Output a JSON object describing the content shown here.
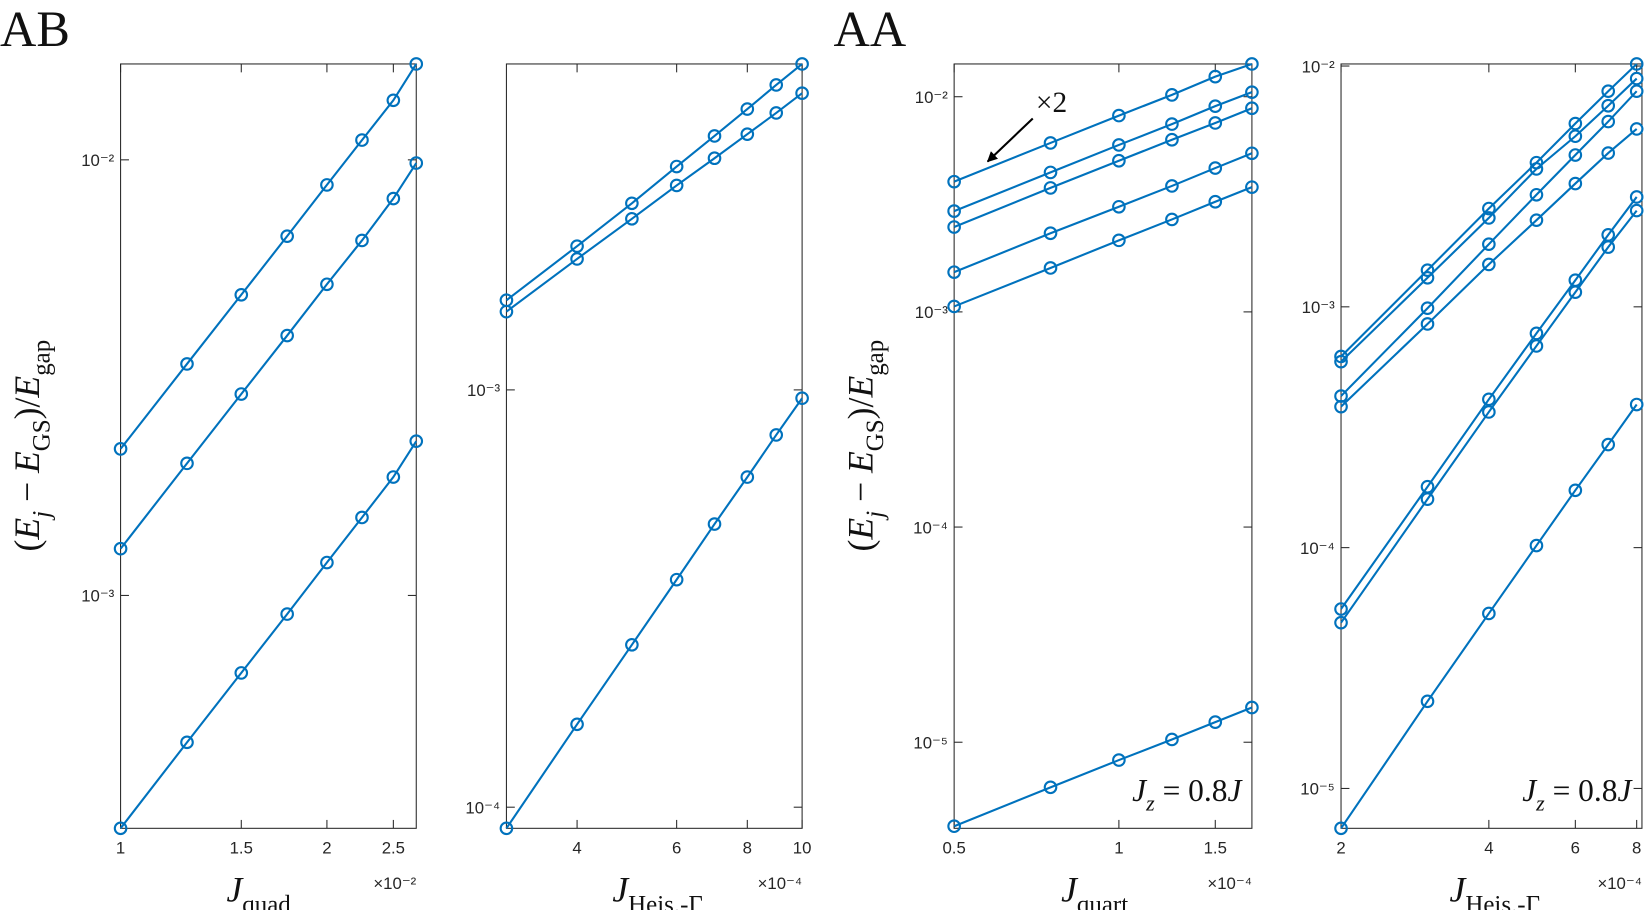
{
  "chart_data": [
    {
      "type": "line",
      "panel_label": "AB",
      "xscale": "log",
      "yscale": "log",
      "xlabel": [
        "J",
        "quad"
      ],
      "x_multiplier": "×10⁻²",
      "ylabel": [
        "(",
        "E",
        "j",
        " − ",
        "E",
        "GS",
        ")/",
        "E",
        "gap"
      ],
      "x": [
        1,
        1.25,
        1.5,
        1.75,
        2,
        2.25,
        2.5,
        2.7
      ],
      "xlim": [
        1,
        2.7
      ],
      "xticks": [
        1,
        1.5,
        2,
        2.5
      ],
      "ylim": [
        0.000292,
        0.0166
      ],
      "yticks": [
        {
          "value": 0.001,
          "label": "10⁻³"
        },
        {
          "value": 0.01,
          "label": "10⁻²"
        }
      ],
      "series": [
        {
          "color": "#0072bd",
          "values": [
            0.00217,
            0.0034,
            0.0049,
            0.00668,
            0.00876,
            0.0111,
            0.0137,
            0.0166
          ]
        },
        {
          "color": "#0072bd",
          "values": [
            0.00128,
            0.00201,
            0.0029,
            0.00395,
            0.00518,
            0.00653,
            0.00815,
            0.00983
          ]
        },
        {
          "color": "#0072bd",
          "values": [
            0.000292,
            0.00046,
            0.000664,
            0.000906,
            0.00119,
            0.00151,
            0.00187,
            0.00226
          ]
        }
      ]
    },
    {
      "type": "line",
      "xscale": "log",
      "yscale": "log",
      "xlabel": [
        "J",
        "Heis.-Γ"
      ],
      "x_multiplier": "×10⁻⁴",
      "x": [
        3,
        4,
        5,
        6,
        7,
        8,
        9,
        10
      ],
      "xlim": [
        3,
        10
      ],
      "xticks": [
        4,
        6,
        8,
        10
      ],
      "ylim": [
        8.9e-05,
        0.00604
      ],
      "yticks": [
        {
          "value": 0.0001,
          "label": "10⁻⁴"
        },
        {
          "value": 0.001,
          "label": "10⁻³"
        }
      ],
      "series": [
        {
          "color": "#0072bd",
          "values": [
            0.00164,
            0.00221,
            0.0028,
            0.00343,
            0.00406,
            0.00471,
            0.00538,
            0.00604
          ]
        },
        {
          "color": "#0072bd",
          "values": [
            0.00154,
            0.00206,
            0.00257,
            0.00309,
            0.00359,
            0.0041,
            0.00461,
            0.00514
          ]
        },
        {
          "color": "#0072bd",
          "values": [
            8.9e-05,
            0.000158,
            0.000245,
            0.000351,
            0.000477,
            0.000618,
            0.00078,
            0.000955
          ]
        }
      ]
    },
    {
      "type": "line",
      "panel_label": "AA",
      "xscale": "log",
      "yscale": "log",
      "xlabel": [
        "J",
        "quart"
      ],
      "x_multiplier": "×10⁻⁴",
      "ylabel": [
        "(",
        "E",
        "j",
        " − ",
        "E",
        "GS",
        ")/",
        "E",
        "gap"
      ],
      "arrow_label": "×2",
      "note": [
        "J",
        "z",
        " = 0.8",
        "J"
      ],
      "x": [
        0.5,
        0.75,
        1,
        1.25,
        1.5,
        1.75
      ],
      "xlim": [
        0.5,
        1.75
      ],
      "xticks": [
        0.5,
        1,
        1.5
      ],
      "ylim": [
        3.98e-06,
        0.0142
      ],
      "yticks": [
        {
          "value": 1e-05,
          "label": "10⁻⁵"
        },
        {
          "value": 0.0001,
          "label": "10⁻⁴"
        },
        {
          "value": 0.001,
          "label": "10⁻³"
        },
        {
          "value": 0.01,
          "label": "10⁻²"
        }
      ],
      "series": [
        {
          "color": "#0072bd",
          "values": [
            0.00403,
            0.0061,
            0.00817,
            0.0102,
            0.0124,
            0.0142
          ]
        },
        {
          "color": "#0072bd",
          "values": [
            0.00294,
            0.00445,
            0.00597,
            0.00746,
            0.00904,
            0.0105
          ]
        },
        {
          "color": "#0072bd",
          "values": [
            0.00248,
            0.00377,
            0.00504,
            0.00631,
            0.00755,
            0.00884
          ]
        },
        {
          "color": "#0072bd",
          "values": [
            0.00153,
            0.00232,
            0.00308,
            0.00385,
            0.00466,
            0.00546
          ]
        },
        {
          "color": "#0072bd",
          "values": [
            0.00106,
            0.0016,
            0.00215,
            0.00269,
            0.00325,
            0.0038
          ]
        },
        {
          "color": "#0072bd",
          "values": [
            4.07e-06,
            6.17e-06,
            8.26e-06,
            1.03e-05,
            1.24e-05,
            1.45e-05
          ]
        }
      ]
    },
    {
      "type": "line",
      "xscale": "log",
      "yscale": "log",
      "xlabel": [
        "J",
        "Heis.-Γ"
      ],
      "x_multiplier": "×10⁻⁴",
      "note": [
        "J",
        "z",
        " = 0.8",
        "J"
      ],
      "x": [
        2,
        3,
        4,
        5,
        6,
        7,
        8
      ],
      "xlim": [
        2,
        8.2
      ],
      "xticks": [
        2,
        4,
        6,
        8
      ],
      "ylim": [
        6.83e-06,
        0.0102
      ],
      "yticks": [
        {
          "value": 1e-05,
          "label": "10⁻⁵"
        },
        {
          "value": 0.0001,
          "label": "10⁻⁴"
        },
        {
          "value": 0.001,
          "label": "10⁻³"
        },
        {
          "value": 0.01,
          "label": "10⁻²"
        }
      ],
      "series": [
        {
          "color": "#0072bd",
          "values": [
            0.000622,
            0.00142,
            0.00256,
            0.00397,
            0.00577,
            0.00786,
            0.0102
          ]
        },
        {
          "color": "#0072bd",
          "values": [
            0.000592,
            0.00132,
            0.00234,
            0.00374,
            0.00511,
            0.00684,
            0.00887
          ]
        },
        {
          "color": "#0072bd",
          "values": [
            0.000426,
            0.000987,
            0.00182,
            0.00292,
            0.00427,
            0.00588,
            0.00786
          ]
        },
        {
          "color": "#0072bd",
          "values": [
            0.000385,
            0.000849,
            0.0015,
            0.00229,
            0.00325,
            0.00435,
            0.00548
          ]
        },
        {
          "color": "#0072bd",
          "values": [
            5.56e-05,
            0.000179,
            0.000413,
            0.000776,
            0.00129,
            0.00199,
            0.00286
          ]
        },
        {
          "color": "#0072bd",
          "values": [
            4.88e-05,
            0.000159,
            0.000366,
            0.000688,
            0.00115,
            0.00177,
            0.00251
          ]
        },
        {
          "color": "#0072bd",
          "values": [
            6.83e-06,
            2.3e-05,
            5.33e-05,
            0.000102,
            0.000173,
            0.000268,
            0.000393
          ]
        }
      ]
    }
  ]
}
